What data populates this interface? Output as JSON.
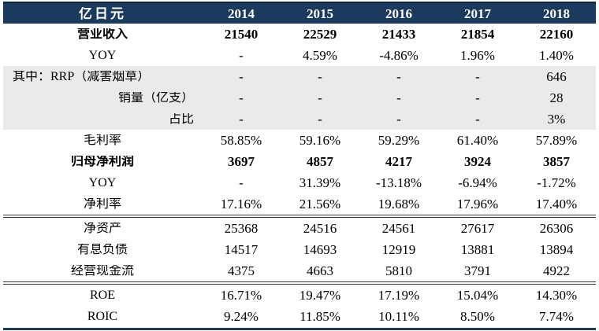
{
  "table": {
    "unit_label": "亿日元",
    "years": [
      "2014",
      "2015",
      "2016",
      "2017",
      "2018"
    ],
    "rows": [
      {
        "label": "营业收入",
        "values": [
          "21540",
          "22529",
          "21433",
          "21854",
          "22160"
        ],
        "bold": true,
        "label_align": "center"
      },
      {
        "label": "YOY",
        "values": [
          "-",
          "4.59%",
          "-4.86%",
          "1.96%",
          "1.40%"
        ],
        "label_align": "center"
      },
      {
        "label": "其中：RRP（减害烟草）",
        "values": [
          "-",
          "-",
          "-",
          "-",
          "646"
        ],
        "shaded": true,
        "label_align": "left"
      },
      {
        "label": "销量（亿支）",
        "values": [
          "-",
          "-",
          "-",
          "-",
          "28"
        ],
        "shaded": true,
        "label_align": "right"
      },
      {
        "label": "占比",
        "values": [
          "-",
          "-",
          "-",
          "-",
          "3%"
        ],
        "shaded": true,
        "label_align": "right"
      },
      {
        "label": "毛利率",
        "values": [
          "58.85%",
          "59.16%",
          "59.29%",
          "61.40%",
          "57.89%"
        ],
        "label_align": "center"
      },
      {
        "label": "归母净利润",
        "values": [
          "3697",
          "4857",
          "4217",
          "3924",
          "3857"
        ],
        "bold": true,
        "label_align": "center"
      },
      {
        "label": "YOY",
        "values": [
          "-",
          "31.39%",
          "-13.18%",
          "-6.94%",
          "-1.72%"
        ],
        "label_align": "center"
      },
      {
        "label": "净利率",
        "values": [
          "17.16%",
          "21.56%",
          "19.68%",
          "17.96%",
          "17.40%"
        ],
        "label_align": "center",
        "rule_below": true
      },
      {
        "label": "净资产",
        "values": [
          "25368",
          "24516",
          "24561",
          "27617",
          "26306"
        ],
        "label_align": "center"
      },
      {
        "label": "有息负债",
        "values": [
          "14517",
          "14693",
          "12919",
          "13881",
          "13894"
        ],
        "label_align": "center"
      },
      {
        "label": "经营现金流",
        "values": [
          "4375",
          "4663",
          "5810",
          "3791",
          "4922"
        ],
        "label_align": "center",
        "rule_below": true
      },
      {
        "label": "ROE",
        "values": [
          "16.71%",
          "19.47%",
          "17.19%",
          "15.04%",
          "14.30%"
        ],
        "label_align": "center"
      },
      {
        "label": "ROIC",
        "values": [
          "9.24%",
          "11.85%",
          "10.11%",
          "8.50%",
          "7.74%"
        ],
        "label_align": "center"
      }
    ],
    "colors": {
      "header_bg": "#1C3A5E",
      "header_text": "#FFFFFF",
      "shaded_row_bg": "#EAEAEA",
      "divider_rule": "#3A3A3A",
      "bottom_rule": "#1C3A5E",
      "body_text": "#000000"
    }
  }
}
